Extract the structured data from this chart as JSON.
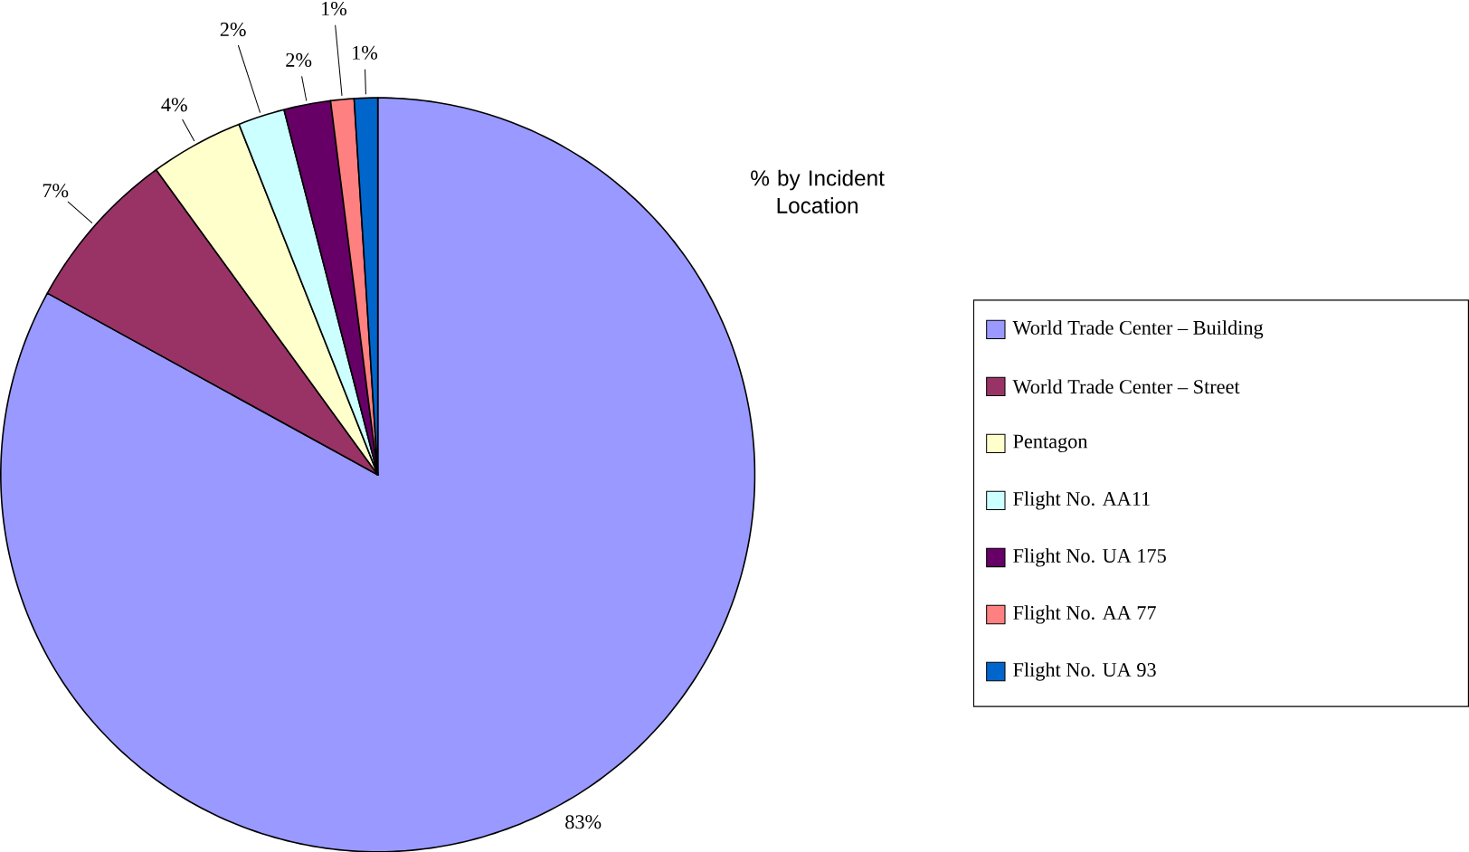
{
  "chart_data": {
    "type": "pie",
    "title": "% by Incident Location",
    "categories": [
      "World Trade Center – Building",
      "World Trade Center – Street",
      "Pentagon",
      "Flight No. AA11",
      "Flight No. UA 175",
      "Flight No. AA 77",
      "Flight No. UA 93"
    ],
    "values": [
      83,
      7,
      4,
      2,
      2,
      1,
      1
    ],
    "value_labels": [
      "83%",
      "7%",
      "4%",
      "2%",
      "2%",
      "1%",
      "1%"
    ],
    "colors": [
      "#9999ff",
      "#993366",
      "#ffffcc",
      "#ccffff",
      "#660066",
      "#ff8080",
      "#0066cc"
    ],
    "legend": "right"
  }
}
